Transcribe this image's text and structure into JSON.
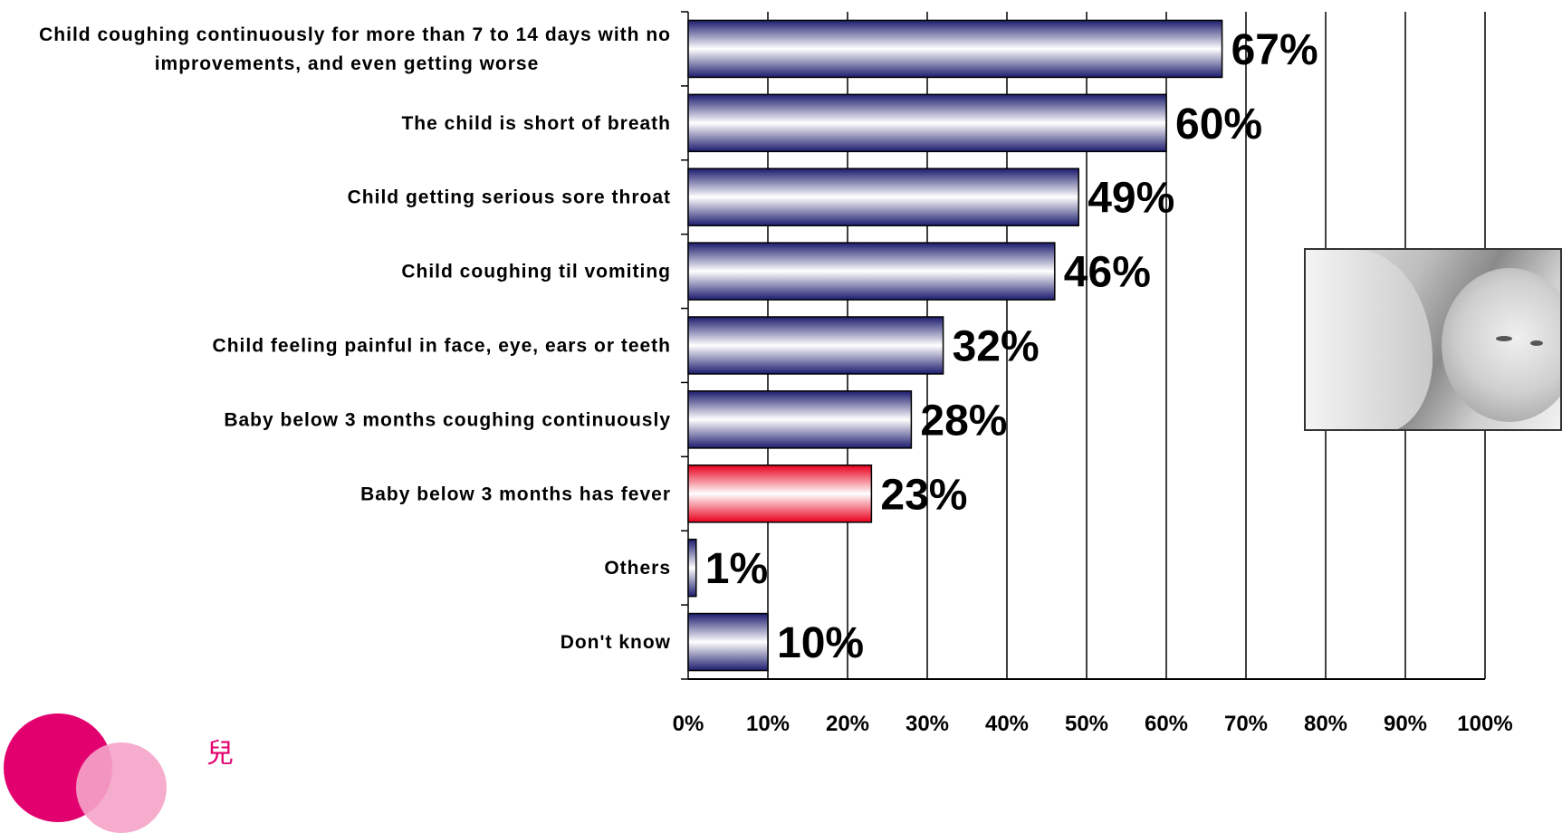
{
  "chart_data": {
    "type": "bar",
    "orientation": "horizontal",
    "categories": [
      [
        "Child coughing continuously for more than 7 to 14 days with no",
        "improvements, and even getting worse"
      ],
      [
        "The child is short of breath"
      ],
      [
        "Child getting serious sore throat"
      ],
      [
        "Child coughing til vomiting"
      ],
      [
        "Child feeling painful in  face, eye, ears or teeth"
      ],
      [
        "Baby below 3 months coughing continuously"
      ],
      [
        "Baby below 3 months has fever"
      ],
      [
        "Others"
      ],
      [
        "Don't know"
      ]
    ],
    "values": [
      67,
      60,
      49,
      46,
      32,
      28,
      23,
      1,
      10
    ],
    "value_labels": [
      "67%",
      "60%",
      "49%",
      "46%",
      "32%",
      "28%",
      "23%",
      "1%",
      "10%"
    ],
    "highlight_index": 6,
    "x_ticks": [
      "0%",
      "10%",
      "20%",
      "30%",
      "40%",
      "50%",
      "60%",
      "70%",
      "80%",
      "90%",
      "100%"
    ],
    "xlim": [
      0,
      100
    ],
    "grid": "vertical",
    "title": "",
    "xlabel": "",
    "ylabel": "",
    "colors": {
      "bar_edge": "#1c1c6e",
      "bar_mid": "#ffffff",
      "highlight_edge": "#e8001c",
      "grid": "#000000"
    }
  },
  "decorations": {
    "photo_icon": "child-photo",
    "logo_icon": "pink-circles-logo",
    "brand_text": "兒"
  }
}
